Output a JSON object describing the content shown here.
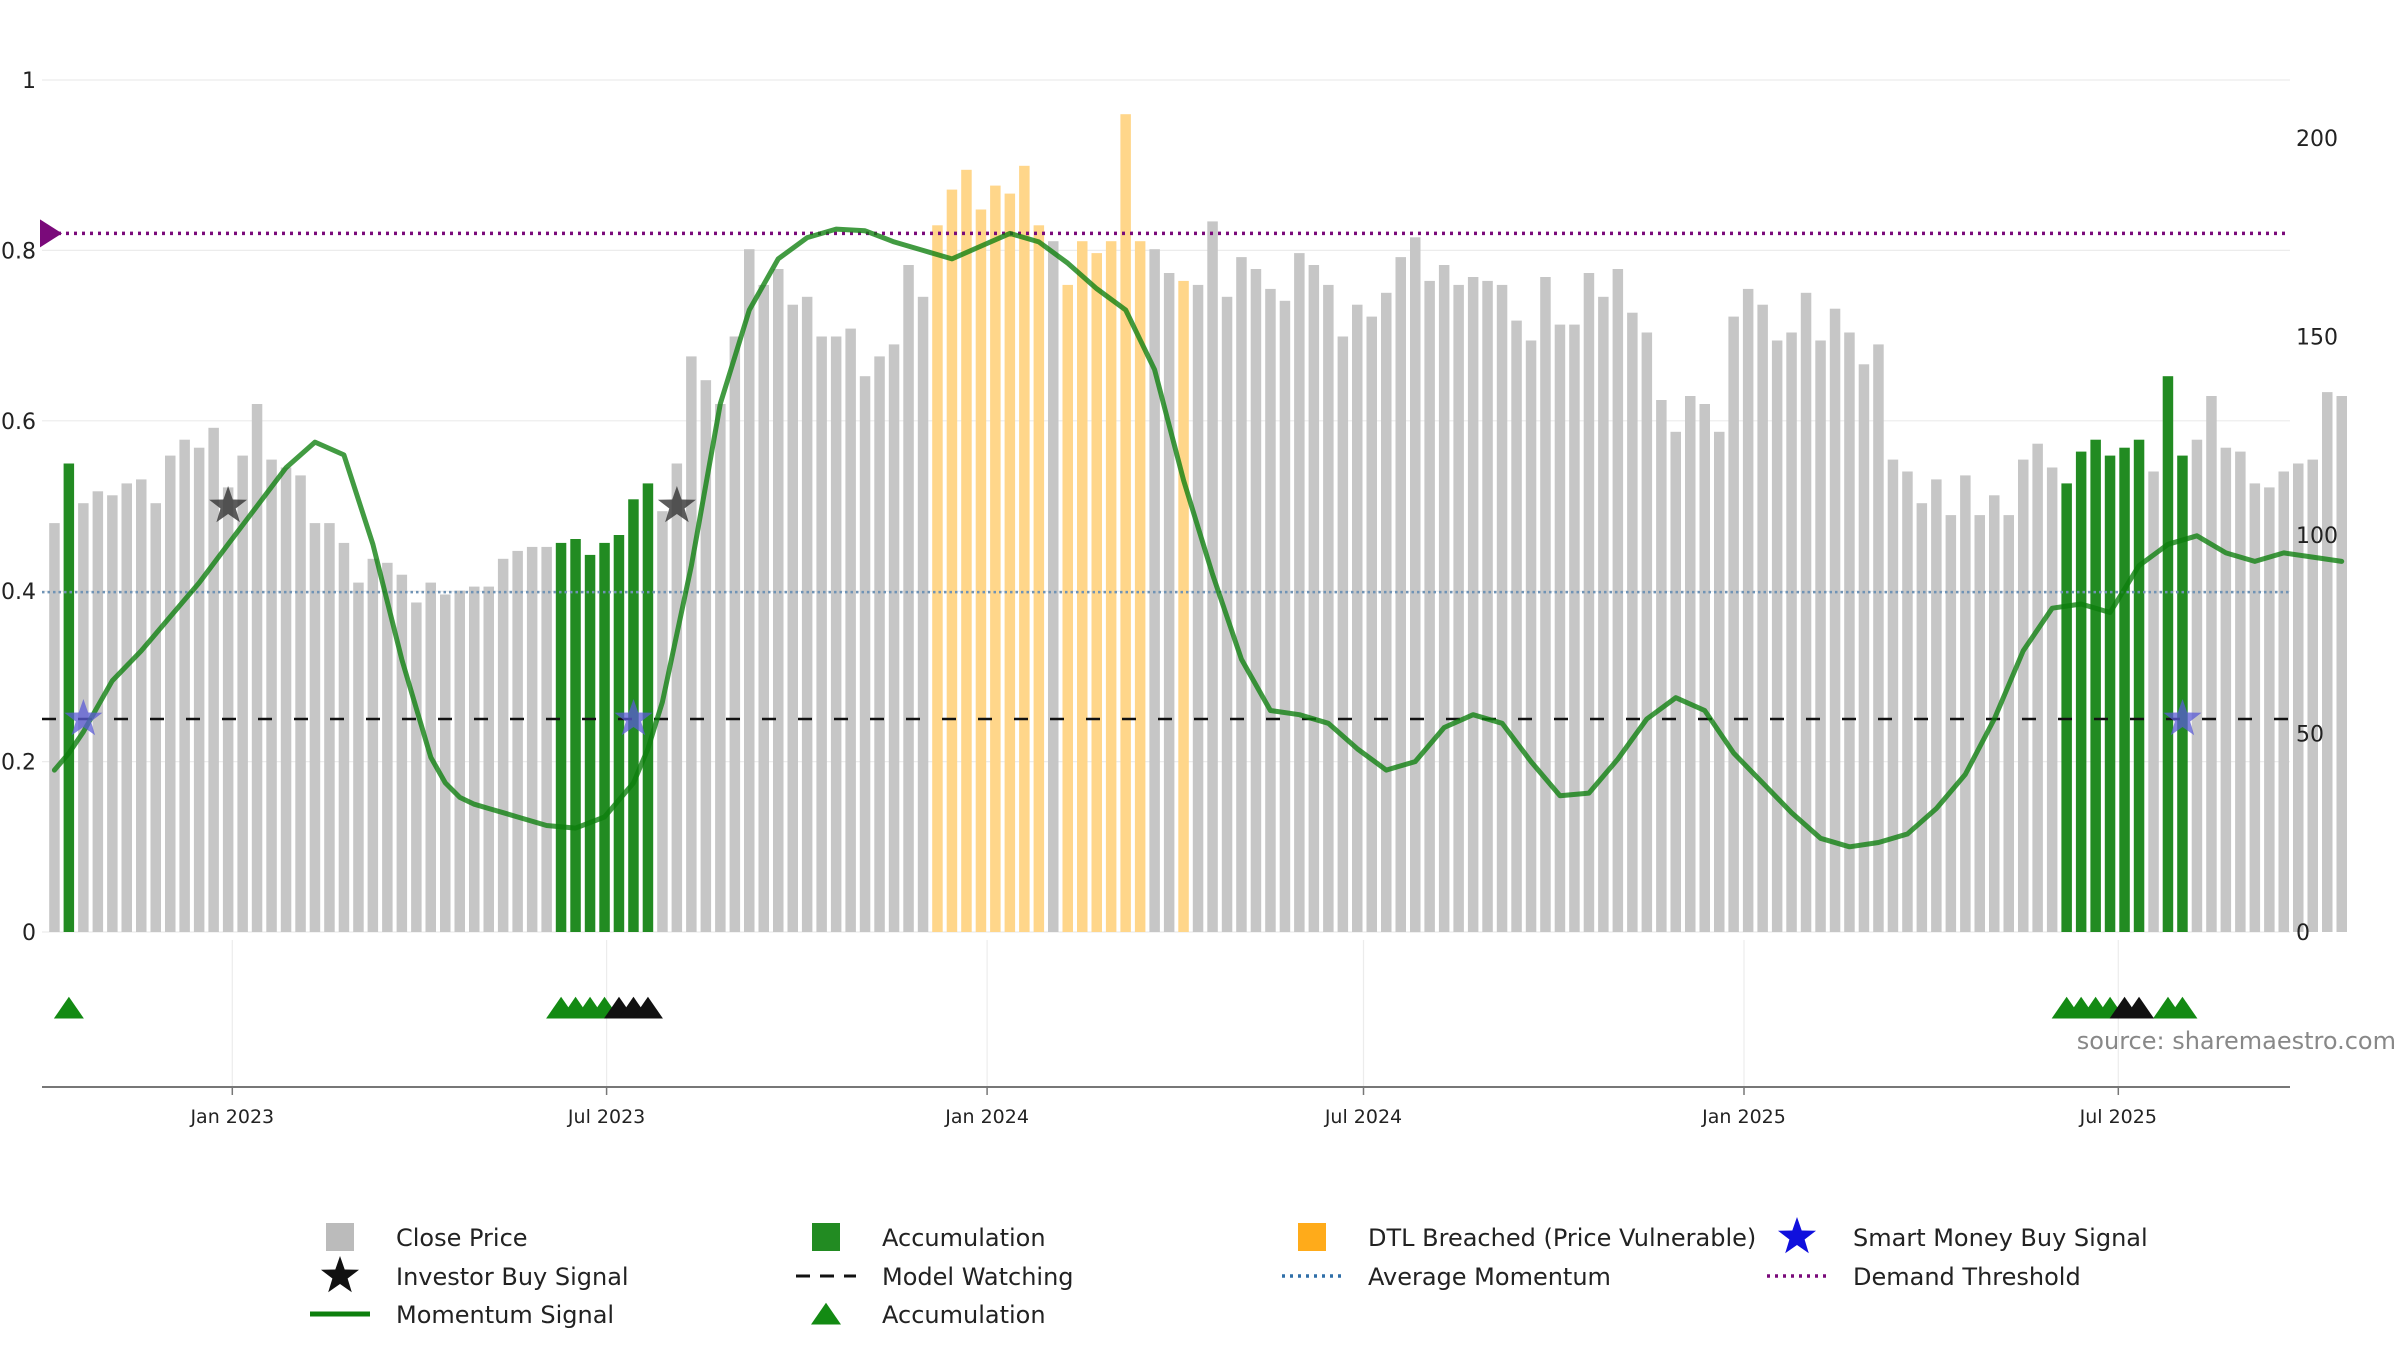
{
  "chart_data": {
    "type": "bar",
    "source_label": "source: sharemaestro.com",
    "left_axis": {
      "ylim": [
        0,
        1
      ],
      "ticks": [
        0,
        0.2,
        0.4,
        0.6,
        0.8
      ],
      "top_label": "1"
    },
    "right_axis": {
      "ylim": [
        0,
        200
      ],
      "ticks": [
        0,
        50,
        100,
        150,
        200
      ]
    },
    "x_axis": {
      "range": [
        "2022-10-01",
        "2025-09-22"
      ],
      "ticks": [
        {
          "date": "2023-01-01",
          "label": "Jan 2023"
        },
        {
          "date": "2023-07-01",
          "label": "Jul 2023"
        },
        {
          "date": "2024-01-01",
          "label": "Jan 2024"
        },
        {
          "date": "2024-07-01",
          "label": "Jul 2024"
        },
        {
          "date": "2025-01-01",
          "label": "Jan 2025"
        },
        {
          "date": "2025-07-01",
          "label": "Jul 2025"
        }
      ]
    },
    "bar_start_date": "2022-10-07",
    "bar_interval_days": 7,
    "close_price": [
      103,
      118,
      108,
      111,
      110,
      113,
      114,
      108,
      120,
      124,
      122,
      127,
      112,
      120,
      133,
      119,
      117,
      115,
      103,
      103,
      98,
      88,
      94,
      93,
      90,
      83,
      88,
      85,
      86,
      87,
      87,
      94,
      96,
      97,
      97,
      98,
      99,
      95,
      98,
      100,
      109,
      113,
      106,
      118,
      145,
      139,
      133,
      150,
      172,
      163,
      167,
      158,
      160,
      150,
      150,
      152,
      140,
      145,
      148,
      168,
      160,
      178,
      187,
      192,
      182,
      188,
      186,
      193,
      178,
      174,
      163,
      174,
      171,
      174,
      206,
      174,
      172,
      166,
      164,
      163,
      179,
      160,
      170,
      167,
      162,
      159,
      171,
      168,
      163,
      150,
      158,
      155,
      161,
      170,
      175,
      164,
      168,
      163,
      165,
      164,
      163,
      154,
      149,
      165,
      153,
      153,
      166,
      160,
      167,
      156,
      151,
      134,
      126,
      135,
      133,
      126,
      155,
      162,
      158,
      149,
      151,
      161,
      149,
      157,
      151,
      143,
      148,
      119,
      116,
      108,
      114,
      105,
      115,
      105,
      110,
      105,
      119,
      123,
      117,
      113,
      121,
      124,
      120,
      122,
      124,
      116,
      140,
      120,
      124,
      135,
      122,
      121,
      113,
      112,
      116,
      118,
      119,
      136,
      135
    ],
    "bar_categories": {
      "accumulation": [
        1,
        35,
        36,
        37,
        38,
        39,
        40,
        41,
        139,
        140,
        141,
        142,
        143,
        144,
        146,
        147
      ],
      "dtl_breached": [
        61,
        62,
        63,
        64,
        65,
        66,
        67,
        68,
        70,
        71,
        72,
        73,
        74,
        75,
        78
      ]
    },
    "momentum": {
      "x_index": [
        0,
        1,
        2,
        3,
        4,
        6,
        8,
        10,
        12,
        14,
        16,
        18,
        20,
        22,
        24,
        26,
        27,
        28,
        29,
        30,
        31,
        32,
        34,
        36,
        38,
        40,
        41,
        42,
        44,
        46,
        48,
        50,
        52,
        54,
        56,
        58,
        60,
        62,
        64,
        66,
        68,
        70,
        72,
        74,
        76,
        78,
        80,
        82,
        84,
        86,
        88,
        90,
        92,
        94,
        96,
        98,
        100,
        102,
        104,
        106,
        108,
        110,
        112,
        114,
        116,
        118,
        120,
        122,
        124,
        126,
        128,
        130,
        132,
        134,
        136,
        138,
        140,
        142,
        144,
        146,
        148,
        150,
        152,
        154,
        156,
        158
      ],
      "values": [
        0.19,
        0.21,
        0.235,
        0.265,
        0.295,
        0.33,
        0.37,
        0.41,
        0.455,
        0.5,
        0.545,
        0.575,
        0.56,
        0.455,
        0.32,
        0.205,
        0.175,
        0.158,
        0.15,
        0.145,
        0.14,
        0.135,
        0.125,
        0.122,
        0.135,
        0.175,
        0.215,
        0.27,
        0.43,
        0.62,
        0.73,
        0.79,
        0.815,
        0.825,
        0.823,
        0.81,
        0.8,
        0.79,
        0.805,
        0.82,
        0.81,
        0.785,
        0.755,
        0.73,
        0.66,
        0.53,
        0.42,
        0.32,
        0.26,
        0.255,
        0.245,
        0.215,
        0.19,
        0.2,
        0.24,
        0.255,
        0.245,
        0.2,
        0.16,
        0.163,
        0.203,
        0.25,
        0.275,
        0.26,
        0.21,
        0.175,
        0.14,
        0.11,
        0.1,
        0.105,
        0.115,
        0.145,
        0.185,
        0.25,
        0.33,
        0.38,
        0.385,
        0.375,
        0.43,
        0.455,
        0.465,
        0.445,
        0.435,
        0.445,
        0.44,
        0.435
      ]
    },
    "average_momentum": 0.399,
    "model_watching": 0.25,
    "demand_threshold": 0.82,
    "investor_buy_signals": [
      {
        "x_index": 12,
        "y": 0.5
      },
      {
        "x_index": 43,
        "y": 0.5
      }
    ],
    "smart_money_buy_signals": [
      {
        "x_index": 2,
        "y": 0.25
      },
      {
        "x_index": 40,
        "y": 0.25
      },
      {
        "x_index": 147,
        "y": 0.25
      }
    ],
    "accumulation_markers_green": [
      1,
      35,
      36,
      37,
      38,
      139,
      140,
      141,
      142,
      146,
      147
    ],
    "accumulation_markers_black": [
      39,
      40,
      41,
      143,
      144
    ],
    "legend": [
      {
        "label": "Close Price",
        "type": "square",
        "color": "#bbbbbb"
      },
      {
        "label": "Accumulation",
        "type": "square",
        "color": "#228b22"
      },
      {
        "label": "DTL Breached (Price Vulnerable)",
        "type": "square",
        "color": "#ffab1a"
      },
      {
        "label": "Smart Money Buy Signal",
        "type": "star",
        "color": "#1010dd"
      },
      {
        "label": "Investor Buy Signal",
        "type": "star",
        "color": "#111111"
      },
      {
        "label": "Model Watching",
        "type": "dash",
        "color": "#111111"
      },
      {
        "label": "Average Momentum",
        "type": "dot",
        "color": "#2f6fa8"
      },
      {
        "label": "Demand Threshold",
        "type": "dot",
        "color": "#7a0a7a"
      },
      {
        "label": "Momentum Signal",
        "type": "line",
        "color": "#0d7f0d"
      },
      {
        "label": "Accumulation",
        "type": "triangle",
        "color": "#138a13"
      }
    ],
    "colors": {
      "close_price": "#c6c6c6",
      "accumulation": "#228b22",
      "dtl_breached": "#ffd68a",
      "momentum": "#0d7f0d",
      "average_momentum": "#6f93b5",
      "model_watching": "#111111",
      "demand_threshold": "#7a0a7a",
      "smart_money": "#5b5bd6",
      "investor_buy": "#333333",
      "marker_green": "#138a13",
      "marker_black": "#111111"
    }
  }
}
